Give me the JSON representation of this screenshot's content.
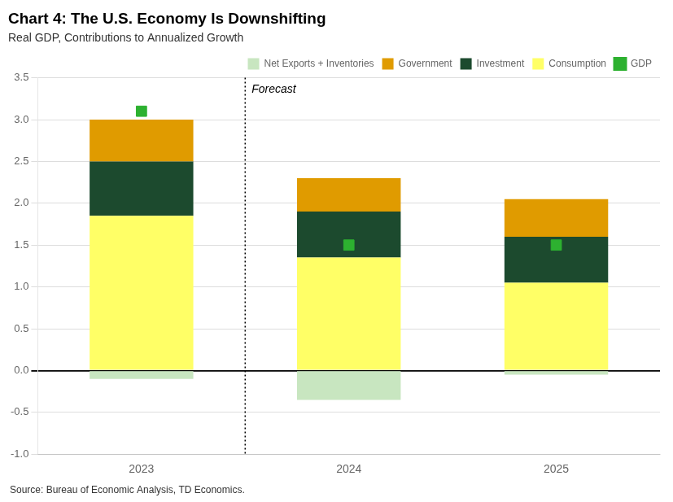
{
  "chart_data": {
    "type": "bar",
    "title": "Chart 4: The U.S. Economy Is Downshifting",
    "subtitle": "Real GDP, Contributions to Annualized Growth",
    "annotations": [
      {
        "text": "Forecast",
        "category": "2024"
      },
      {
        "text": "Source: Bureau of Economic Analysis, TD Economics."
      }
    ],
    "categories": [
      "2023",
      "2024",
      "2025"
    ],
    "series": [
      {
        "name": "Consumption",
        "color": "#FFFF66",
        "values": [
          1.85,
          1.35,
          1.05
        ]
      },
      {
        "name": "Investment",
        "color": "#1C4A2E",
        "values": [
          0.65,
          0.55,
          0.55
        ]
      },
      {
        "name": "Government",
        "color": "#E09B00",
        "values": [
          0.5,
          0.4,
          0.45
        ]
      },
      {
        "name": "Net Exports + Inventories",
        "color": "#C8E6C0",
        "values": [
          -0.1,
          -0.35,
          -0.05
        ]
      },
      {
        "name": "GDP",
        "type": "scatter",
        "marker": "square",
        "color": "#2DB130",
        "values": [
          3.1,
          1.5,
          1.5
        ]
      }
    ],
    "stacked": true,
    "ylim": [
      -1.0,
      3.5
    ],
    "yticks": [
      {
        "value": -1.0,
        "label": "-1.0"
      },
      -0.5,
      {
        "value": 0.0,
        "label": "0.0"
      },
      0.5,
      {
        "value": 1.0,
        "label": "1.0"
      },
      1.5,
      {
        "value": 2.0,
        "label": "2.0"
      },
      2.5,
      {
        "value": 3.0,
        "label": "3.0"
      },
      3.5
    ],
    "grid": true,
    "legend": "upper right"
  }
}
